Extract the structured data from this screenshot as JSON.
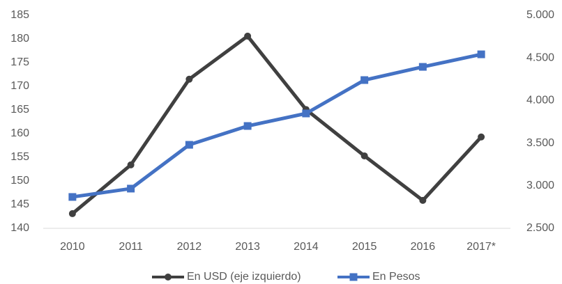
{
  "chart_data": {
    "type": "line",
    "categories": [
      "2010",
      "2011",
      "2012",
      "2013",
      "2014",
      "2015",
      "2016",
      "2017*"
    ],
    "series": [
      {
        "name": "En USD (eje izquierdo)",
        "color": "#404040",
        "marker": "circle",
        "values": [
          143.1,
          153.4,
          171.5,
          180.6,
          165.1,
          155.3,
          145.9,
          159.3
        ]
      },
      {
        "name": "En Pesos",
        "color": "#4472c4",
        "marker": "square",
        "axis": "y2",
        "values": [
          2868,
          2966,
          3480,
          3701,
          3848,
          4240,
          4395,
          4542
        ]
      }
    ],
    "ylim": [
      140,
      185
    ],
    "yticks": [
      140,
      145,
      150,
      155,
      160,
      165,
      170,
      175,
      180,
      185
    ],
    "y2lim": [
      2500,
      5000
    ],
    "y2ticks": [
      {
        "value": 2500,
        "label": "2.500"
      },
      {
        "value": 3000,
        "label": "3.000"
      },
      {
        "value": 3500,
        "label": "3.500"
      },
      {
        "value": 4000,
        "label": "4.000"
      },
      {
        "value": 4500,
        "label": "4.500"
      },
      {
        "value": 5000,
        "label": "5.000"
      }
    ],
    "legend": "bottom",
    "grid": false
  }
}
